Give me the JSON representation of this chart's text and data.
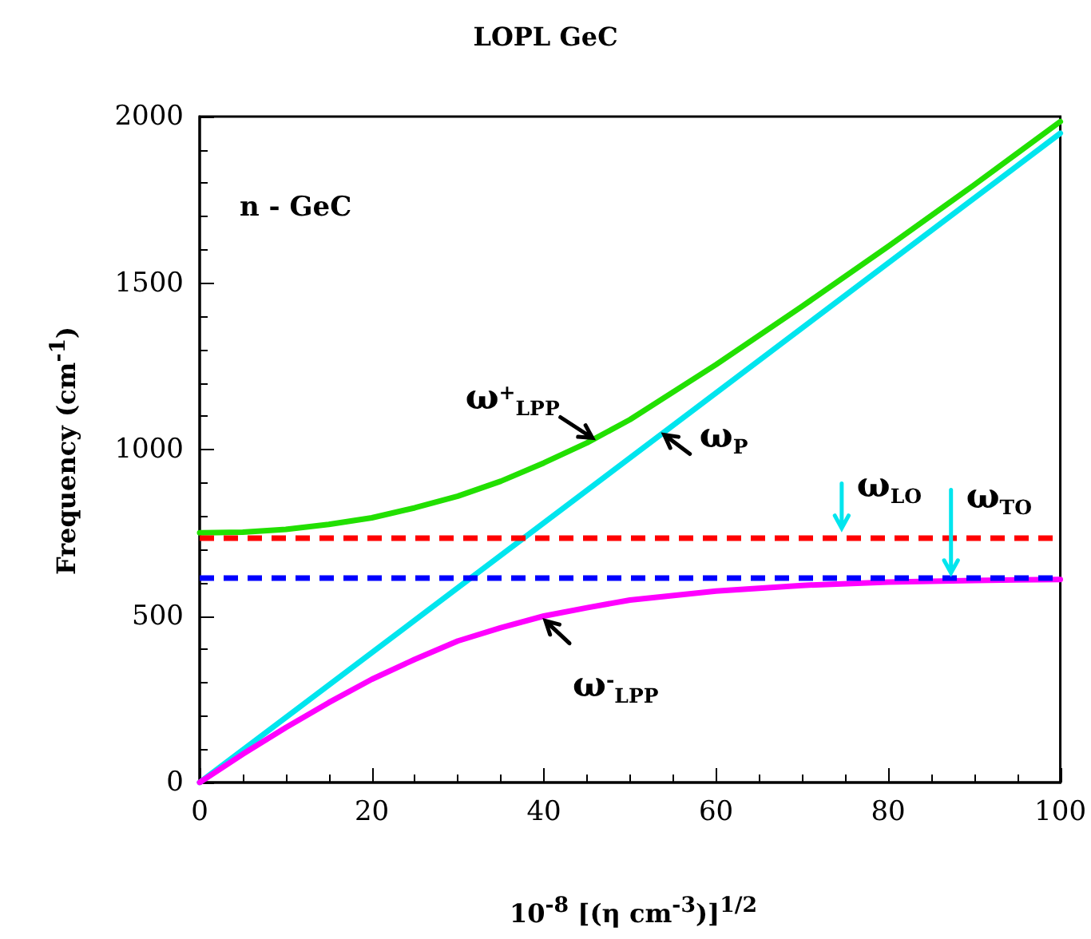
{
  "chart_data": {
    "type": "line",
    "title": "LOPL GeC",
    "xlabel": "10$^{-8}$ [(η cm$^{-3}$)]$^{1/2}$",
    "ylabel": "Frequency (cm$^{-1}$)",
    "annotations": [
      "n - GeC",
      {
        "text": "ω$^{+}$$_{LPP}$",
        "x": 46,
        "y": 1030
      },
      {
        "text": "ω$_{P}$",
        "x": 53.8,
        "y": 1049
      },
      {
        "text": "ω$_{LO}$",
        "x": 74.6,
        "y": 735
      },
      {
        "text": "ω$_{TO}$",
        "x": 87.3,
        "y": 615
      },
      {
        "text": "ω$^{-}$$_{LPP}$",
        "x": 40,
        "y": 490
      }
    ],
    "series": [
      {
        "color": "#22e000",
        "x": [
          0,
          5,
          10,
          15,
          20,
          25,
          30,
          35,
          40,
          45,
          50,
          60,
          70,
          80,
          90,
          100
        ],
        "values": [
          750,
          752,
          760,
          775,
          795,
          825,
          860,
          905,
          960,
          1020,
          1090,
          1255,
          1430,
          1610,
          1795,
          1985
        ]
      },
      {
        "color": "#00e5ee",
        "x": [
          0,
          100
        ],
        "values": [
          0,
          1950
        ]
      },
      {
        "color": "#ff00ff",
        "x": [
          0,
          5,
          10,
          15,
          20,
          25,
          30,
          35,
          40,
          45,
          50,
          60,
          70,
          80,
          90,
          100
        ],
        "values": [
          0,
          85,
          165,
          240,
          310,
          370,
          425,
          465,
          500,
          525,
          548,
          575,
          592,
          602,
          607,
          610
        ]
      }
    ],
    "ref_lines": [
      {
        "axis": "y",
        "value": 735,
        "color": "#ff0000",
        "line_style": "dashed"
      },
      {
        "axis": "y",
        "value": 615,
        "color": "#0000ff",
        "line_style": "dashed"
      }
    ],
    "xlim": [
      0,
      100
    ],
    "ylim": [
      0,
      2000
    ],
    "xticks": [
      0,
      20,
      40,
      60,
      80,
      100
    ],
    "yticks": [
      0,
      500,
      1000,
      1500,
      2000
    ],
    "grid": false,
    "marker": "none",
    "line_style": "solid"
  }
}
